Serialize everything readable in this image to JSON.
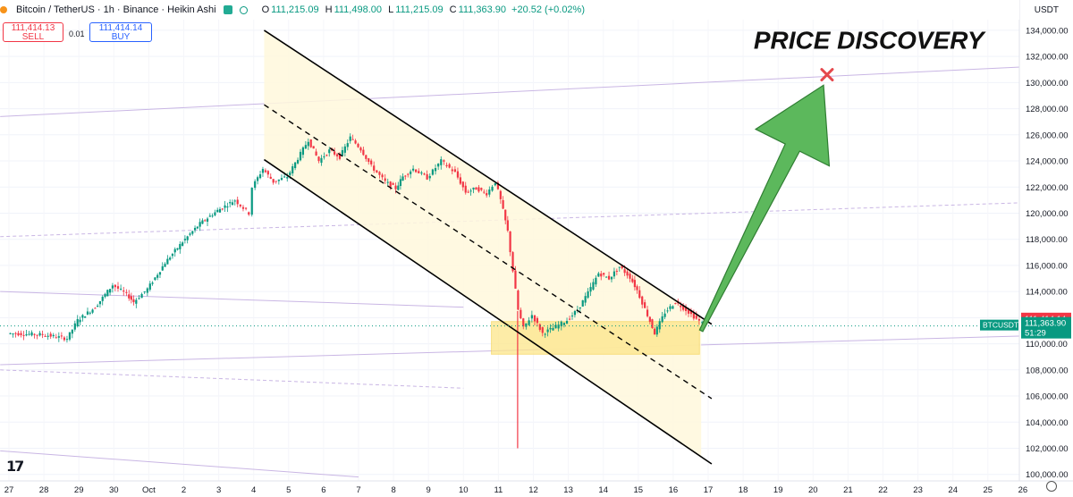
{
  "header": {
    "title": "Bitcoin / TetherUS · 1h · Binance · Heikin Ashi",
    "open_label": "O",
    "open": "111,215.09",
    "high_label": "H",
    "high": "111,498.00",
    "low_label": "L",
    "low": "111,215.09",
    "close_label": "C",
    "close": "111,363.90",
    "change": "+20.52 (+0.02%)"
  },
  "trade": {
    "sell_price": "111,414.13",
    "sell_label": "SELL",
    "spread": "0.01",
    "buy_price": "111,414.14",
    "buy_label": "BUY"
  },
  "currency": "USDT",
  "colors": {
    "up": "#089981",
    "down": "#f23645",
    "arrow": "#5cb85c",
    "zone": "#fde68a",
    "channel_fill": "#fff8dc"
  },
  "chart_data": {
    "type": "candlestick",
    "ylim": [
      99500,
      135500
    ],
    "y_ticks": [
      100000,
      102000,
      104000,
      106000,
      108000,
      110000,
      112000,
      114000,
      116000,
      118000,
      120000,
      122000,
      124000,
      126000,
      128000,
      130000,
      132000,
      134000
    ],
    "y_tick_labels": [
      "100,000.00",
      "102,000.00",
      "104,000.00",
      "106,000.00",
      "108,000.00",
      "110,000.00",
      "112,000.00",
      "114,000.00",
      "116,000.00",
      "118,000.00",
      "120,000.00",
      "122,000.00",
      "124,000.00",
      "126,000.00",
      "128,000.00",
      "130,000.00",
      "132,000.00",
      "134,000.00"
    ],
    "x_ticks": [
      "27",
      "28",
      "29",
      "30",
      "Oct",
      "2",
      "3",
      "4",
      "5",
      "6",
      "7",
      "8",
      "9",
      "10",
      "11",
      "12",
      "13",
      "14",
      "15",
      "16",
      "17",
      "18",
      "19",
      "20",
      "21",
      "22",
      "23",
      "24",
      "25",
      "26"
    ],
    "price_path": [
      [
        0,
        110800
      ],
      [
        1,
        110700
      ],
      [
        1.7,
        110400
      ],
      [
        2,
        111800
      ],
      [
        2.5,
        112800
      ],
      [
        3,
        114500
      ],
      [
        3.4,
        113800
      ],
      [
        3.6,
        113200
      ],
      [
        4,
        114200
      ],
      [
        4.5,
        116200
      ],
      [
        5,
        117800
      ],
      [
        5.5,
        119200
      ],
      [
        6,
        120200
      ],
      [
        6.5,
        121000
      ],
      [
        6.9,
        120000
      ],
      [
        7,
        122000
      ],
      [
        7.3,
        123400
      ],
      [
        7.6,
        122400
      ],
      [
        8,
        122800
      ],
      [
        8.3,
        124200
      ],
      [
        8.6,
        125600
      ],
      [
        8.9,
        124000
      ],
      [
        9.2,
        124800
      ],
      [
        9.5,
        124300
      ],
      [
        9.8,
        125800
      ],
      [
        10.1,
        124900
      ],
      [
        10.4,
        123600
      ],
      [
        10.8,
        122400
      ],
      [
        11.1,
        121900
      ],
      [
        11.3,
        122800
      ],
      [
        11.6,
        123400
      ],
      [
        12,
        122700
      ],
      [
        12.4,
        124000
      ],
      [
        12.8,
        123100
      ],
      [
        13.1,
        121600
      ],
      [
        13.4,
        121900
      ],
      [
        13.7,
        121500
      ],
      [
        13.95,
        122400
      ],
      [
        14.1,
        121000
      ],
      [
        14.3,
        118600
      ],
      [
        14.45,
        115600
      ],
      [
        14.6,
        112600
      ],
      [
        14.75,
        111200
      ],
      [
        15,
        112200
      ],
      [
        15.3,
        110800
      ],
      [
        15.6,
        111200
      ],
      [
        16,
        111800
      ],
      [
        16.3,
        112600
      ],
      [
        16.6,
        113900
      ],
      [
        16.9,
        115400
      ],
      [
        17.2,
        115000
      ],
      [
        17.5,
        115900
      ],
      [
        17.8,
        115100
      ],
      [
        18,
        114100
      ],
      [
        18.3,
        112200
      ],
      [
        18.5,
        110800
      ],
      [
        18.8,
        112400
      ],
      [
        19.1,
        113200
      ],
      [
        19.4,
        112600
      ],
      [
        19.7,
        111900
      ],
      [
        19.95,
        111400
      ]
    ],
    "wick_low": {
      "x": 14.55,
      "value": 102000
    },
    "annotations": {
      "title_text": "PRICE DISCOVERY",
      "target_marker": {
        "x": 23.4,
        "value": 130600
      },
      "breakout_arrow": {
        "from": [
          19.8,
          111000
        ],
        "to": [
          23.3,
          129800
        ]
      },
      "support_zone": {
        "x_start": 13.8,
        "x_end": 19.75,
        "y_low": 109200,
        "y_high": 111700
      },
      "channel_upper": {
        "from": [
          7.3,
          134000
        ],
        "to": [
          20.1,
          111500
        ]
      },
      "channel_mid": {
        "from": [
          7.3,
          128300
        ],
        "to": [
          20.1,
          105800
        ]
      },
      "channel_lower": {
        "from": [
          7.3,
          124100
        ],
        "to": [
          20.1,
          100800
        ]
      },
      "channel_fill_x_start": 7.3
    },
    "current_price": {
      "label": "BTCUSDT",
      "ask": "111,414.14",
      "last": "111,363.90",
      "timer": "51:29",
      "value": 111364
    }
  }
}
